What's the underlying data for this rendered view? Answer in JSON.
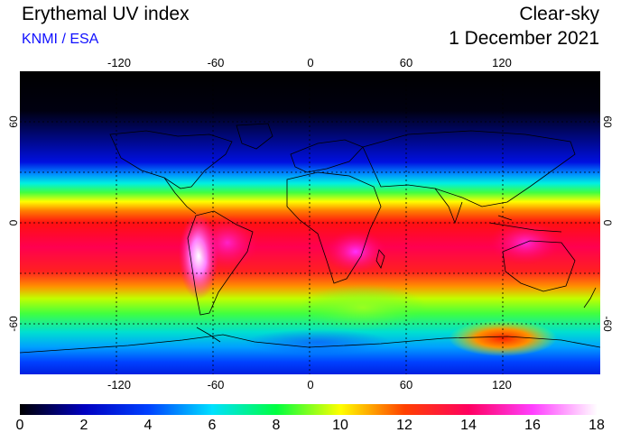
{
  "header": {
    "title": "Erythemal UV index",
    "source": "KNMI / ESA",
    "condition": "Clear-sky",
    "date": "1 December 2021"
  },
  "map": {
    "lon_ticks_top": [
      "-120",
      "-60",
      "0",
      "60",
      "120"
    ],
    "lon_ticks_bottom": [
      "-120",
      "-60",
      "0",
      "60",
      "120"
    ],
    "lat_ticks_left": [
      "60",
      "0",
      "-60"
    ],
    "lat_ticks_right": [
      "60",
      "0",
      "-60"
    ]
  },
  "colorbar": {
    "labels": [
      "0",
      "2",
      "4",
      "6",
      "8",
      "10",
      "12",
      "14",
      "16",
      "18"
    ],
    "colors": {
      "c0": "#000000",
      "c2": "#0000c0",
      "c4": "#0040ff",
      "c6": "#00e0ff",
      "c8": "#00ff40",
      "c10": "#ffff00",
      "c12": "#ff4000",
      "c14": "#ff0060",
      "c16": "#ff40ff",
      "c18": "#ffffff"
    }
  }
}
